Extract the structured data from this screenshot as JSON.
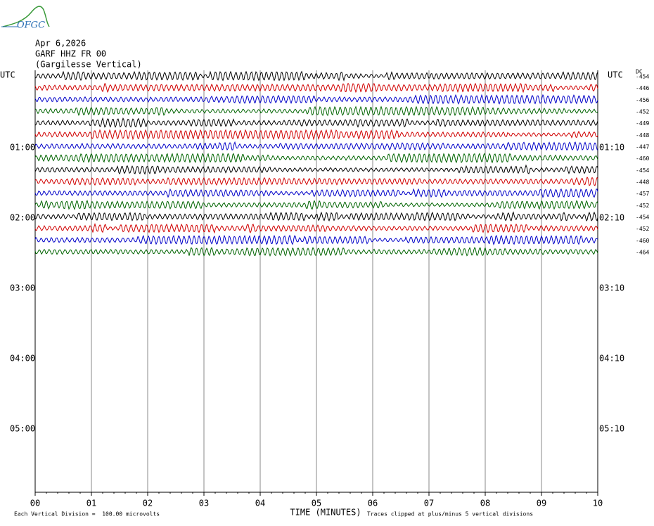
{
  "logo": "OFGC",
  "header": {
    "date": "Apr 6,2026",
    "station": "GARF HHZ FR 00",
    "site": "(Gargilesse Vertical)"
  },
  "left_axis": {
    "title": "UTC",
    "labels": [
      "01:00",
      "02:00",
      "03:00",
      "04:00",
      "05:00"
    ]
  },
  "right_axis": {
    "title": "UTC",
    "labels": [
      "01:10",
      "02:10",
      "03:10",
      "04:10",
      "05:10"
    ],
    "dc_title": "DC",
    "dc_values": [
      -454,
      -446,
      -456,
      -452,
      -449,
      -448,
      -447,
      -460,
      -454,
      -448,
      -457,
      -452,
      -454,
      -452,
      -460,
      -464
    ]
  },
  "x_axis": {
    "labels": [
      "00",
      "01",
      "02",
      "03",
      "04",
      "05",
      "06",
      "07",
      "08",
      "09",
      "10"
    ],
    "title": "TIME (MINUTES)"
  },
  "footer": {
    "scale": "Each Vertical Division =  100.00 microvolts",
    "clip": "Traces clipped at plus/minus 5 vertical divisions"
  }
}
